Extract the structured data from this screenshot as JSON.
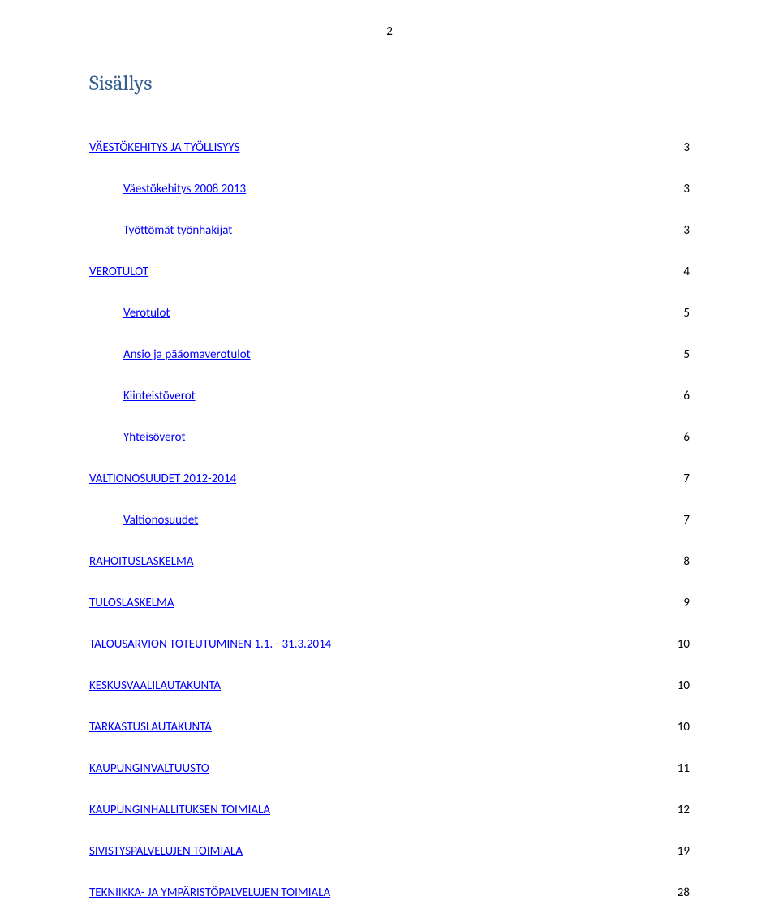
{
  "page_number": "2",
  "title": "Sisällys",
  "title_color": "#365f91",
  "link_color": "#0000ff",
  "background_color": "#ffffff",
  "font_family_title": "Cambria",
  "font_family_body": "Calibri",
  "title_fontsize": 26,
  "body_fontsize": 15,
  "toc": [
    {
      "label": "VÄESTÖKEHITYS JA TYÖLLISYYS",
      "page": "3",
      "indent": 0
    },
    {
      "label": "Väestökehitys 2008   2013",
      "page": "3",
      "indent": 1
    },
    {
      "label": "Työttömät työnhakijat",
      "page": "3",
      "indent": 1
    },
    {
      "label": "VEROTULOT",
      "page": "4",
      "indent": 0
    },
    {
      "label": "Verotulot",
      "page": "5",
      "indent": 1
    },
    {
      "label": "Ansio   ja pääomaverotulot",
      "page": "5",
      "indent": 1
    },
    {
      "label": "Kiinteistöverot",
      "page": "6",
      "indent": 1
    },
    {
      "label": "Yhteisöverot",
      "page": "6",
      "indent": 1
    },
    {
      "label": "VALTIONOSUUDET 2012-2014",
      "page": "7",
      "indent": 0
    },
    {
      "label": "Valtionosuudet",
      "page": "7",
      "indent": 1
    },
    {
      "label": "RAHOITUSLASKELMA",
      "page": "8",
      "indent": 0
    },
    {
      "label": "TULOSLASKELMA",
      "page": "9",
      "indent": 0
    },
    {
      "label": "TALOUSARVION TOTEUTUMINEN 1.1. - 31.3.2014",
      "page": "10",
      "indent": 0
    },
    {
      "label": "KESKUSVAALILAUTAKUNTA",
      "page": "10",
      "indent": 0
    },
    {
      "label": "TARKASTUSLAUTAKUNTA",
      "page": "10",
      "indent": 0
    },
    {
      "label": "KAUPUNGINVALTUUSTO",
      "page": "11",
      "indent": 0
    },
    {
      "label": "KAUPUNGINHALLITUKSEN TOIMIALA",
      "page": "12",
      "indent": 0
    },
    {
      "label": "SIVISTYSPALVELUJEN TOIMIALA",
      "page": "19",
      "indent": 0
    },
    {
      "label": "TEKNIIKKA- JA YMPÄRISTÖPALVELUJEN TOIMIALA",
      "page": "28",
      "indent": 0
    }
  ]
}
